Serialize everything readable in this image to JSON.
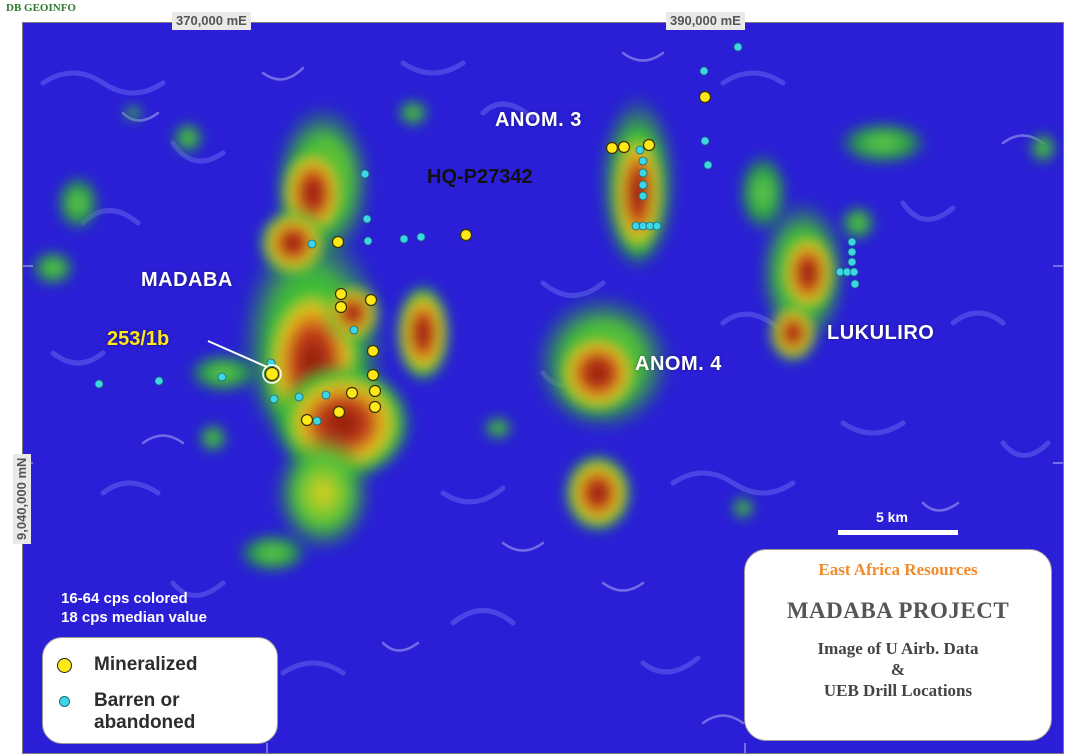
{
  "credit": "DB GEOINFO",
  "grid": {
    "easting_labels": [
      "370,000 mE",
      "390,000 mE"
    ],
    "northing_label": "9,040,000 mN"
  },
  "places": {
    "madaba": "MADABA",
    "anom3": "ANOM. 3",
    "anom4": "ANOM. 4",
    "lukuliro": "LUKULIRO",
    "licence": "HQ-P27342",
    "hole": "253/1b"
  },
  "notes": {
    "line1": "16-64 cps colored",
    "line2": "18 cps median value"
  },
  "scale": {
    "label": "5 km"
  },
  "legend": {
    "mineralized": "Mineralized",
    "barren_line1": "Barren or",
    "barren_line2": "abandoned"
  },
  "title_box": {
    "company": "East Africa Resources",
    "project": "MADABA PROJECT",
    "subtitle_line1": "Image of  U Airb. Data",
    "subtitle_line2": "&",
    "subtitle_line3": "UEB Drill Locations"
  },
  "colors": {
    "background": "#2a1fd6",
    "mineralized": "#ffe818",
    "barren": "#3dd6e6",
    "company": "#f08a2a"
  }
}
